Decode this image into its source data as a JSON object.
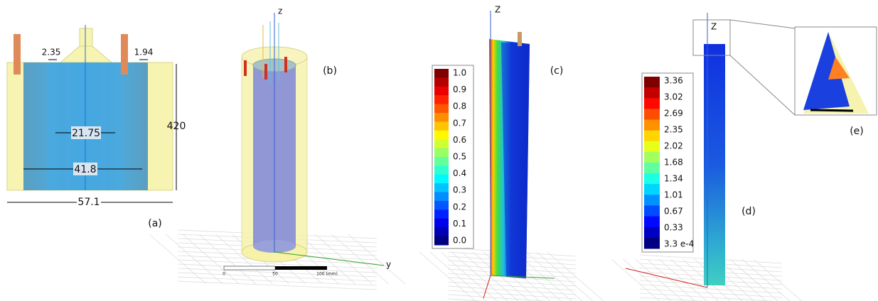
{
  "panels": [
    {
      "label": "(a)",
      "dimensions": [
        "2.35",
        "1.94",
        "21.75",
        "41.8",
        "420",
        "57.1"
      ]
    },
    {
      "label": "(b)",
      "axes": [
        "z",
        "y"
      ],
      "scale_bar": [
        "0",
        "50",
        "100 (mm)"
      ]
    },
    {
      "label": "(c)",
      "axis": "Z",
      "colorbar": [
        "1.0",
        "0.9",
        "0.8",
        "0.7",
        "0.6",
        "0.5",
        "0.4",
        "0.3",
        "0.2",
        "0.1",
        "0.0"
      ]
    },
    {
      "label": "(d)",
      "axis": "Z",
      "colorbar": [
        "3.36",
        "3.02",
        "2.69",
        "2.35",
        "2.02",
        "1.68",
        "1.34",
        "1.01",
        "0.67",
        "0.33",
        "3.3 e-4"
      ]
    },
    {
      "label": "(e)"
    }
  ]
}
